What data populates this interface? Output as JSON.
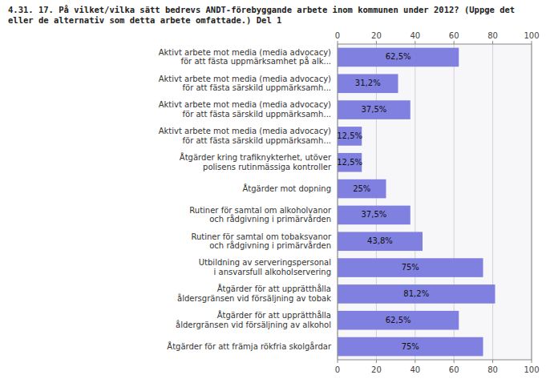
{
  "chart_data": {
    "type": "bar",
    "orientation": "horizontal",
    "title": "4.31. 17. På vilket/vilka sätt bedrevs ANDT-förebyggande arbete inom kommunen under 2012? (Uppge det\neller de alternativ som detta arbete omfattade.) Del 1",
    "categories": [
      "Aktivt arbete mot media (media advocacy)\nför att fästa uppmärksamhet på alk...",
      "Aktivt arbete mot media (media advocacy)\nför att fästa särskild uppmärksamh...",
      "Aktivt arbete mot media (media advocacy)\nför att fästa särskild uppmärksamh...",
      "Aktivt arbete mot media (media advocacy)\nför att fästa särskild uppmärksamh...",
      "Åtgärder kring trafiknykterhet, utöver\npolisens rutinmässiga kontroller",
      "Åtgärder mot dopning",
      "Rutiner för samtal om alkoholvanor\noch rådgivning i primärvården",
      "Rutiner för samtal om tobaksvanor\noch rådgivning i primärvården",
      "Utbildning av serveringspersonal\ni ansvarsfull alkoholservering",
      "Åtgärder för att upprätthålla\nåldersgränsen vid försäljning av tobak",
      "Åtgärder för att upprätthålla\nåldergränsen vid försäljning av alkohol",
      "Åtgärder för att främja rökfria skolgårdar"
    ],
    "values": [
      62.5,
      31.2,
      37.5,
      12.5,
      12.5,
      25.0,
      37.5,
      43.8,
      75.0,
      81.2,
      62.5,
      75.0
    ],
    "value_labels": [
      "62,5%",
      "31,2%",
      "37,5%",
      "12,5%",
      "12,5%",
      "25%",
      "37,5%",
      "43,8%",
      "75%",
      "81,2%",
      "62,5%",
      "75%"
    ],
    "data_labels": true,
    "color": "#8080e0",
    "xlim": [
      0,
      100
    ],
    "xticks": [
      0,
      20,
      40,
      60,
      80,
      100
    ],
    "grid": true
  }
}
